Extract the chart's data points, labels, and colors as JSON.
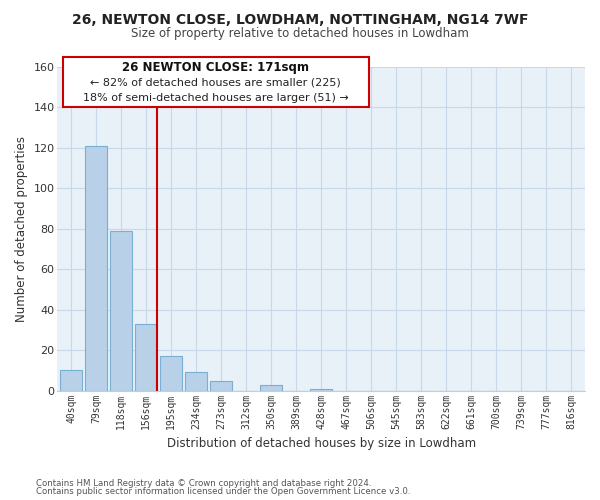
{
  "title1": "26, NEWTON CLOSE, LOWDHAM, NOTTINGHAM, NG14 7WF",
  "title2": "Size of property relative to detached houses in Lowdham",
  "xlabel": "Distribution of detached houses by size in Lowdham",
  "ylabel": "Number of detached properties",
  "footnote1": "Contains HM Land Registry data © Crown copyright and database right 2024.",
  "footnote2": "Contains public sector information licensed under the Open Government Licence v3.0.",
  "bin_labels": [
    "40sqm",
    "79sqm",
    "118sqm",
    "156sqm",
    "195sqm",
    "234sqm",
    "273sqm",
    "312sqm",
    "350sqm",
    "389sqm",
    "428sqm",
    "467sqm",
    "506sqm",
    "545sqm",
    "583sqm",
    "622sqm",
    "661sqm",
    "700sqm",
    "739sqm",
    "777sqm",
    "816sqm"
  ],
  "bar_values": [
    10,
    121,
    79,
    33,
    17,
    9,
    5,
    0,
    3,
    0,
    1,
    0,
    0,
    0,
    0,
    0,
    0,
    0,
    0,
    0,
    0
  ],
  "bar_color": "#b8d0e8",
  "bar_edge_color": "#7aafd4",
  "vline_color": "#cc0000",
  "annotation_title": "26 NEWTON CLOSE: 171sqm",
  "annotation_line1": "← 82% of detached houses are smaller (225)",
  "annotation_line2": "18% of semi-detached houses are larger (51) →",
  "ylim": [
    0,
    160
  ],
  "yticks": [
    0,
    20,
    40,
    60,
    80,
    100,
    120,
    140,
    160
  ],
  "bg_color": "#ffffff",
  "grid_color": "#c8d8e8",
  "plot_bg_color": "#e8f0f8"
}
